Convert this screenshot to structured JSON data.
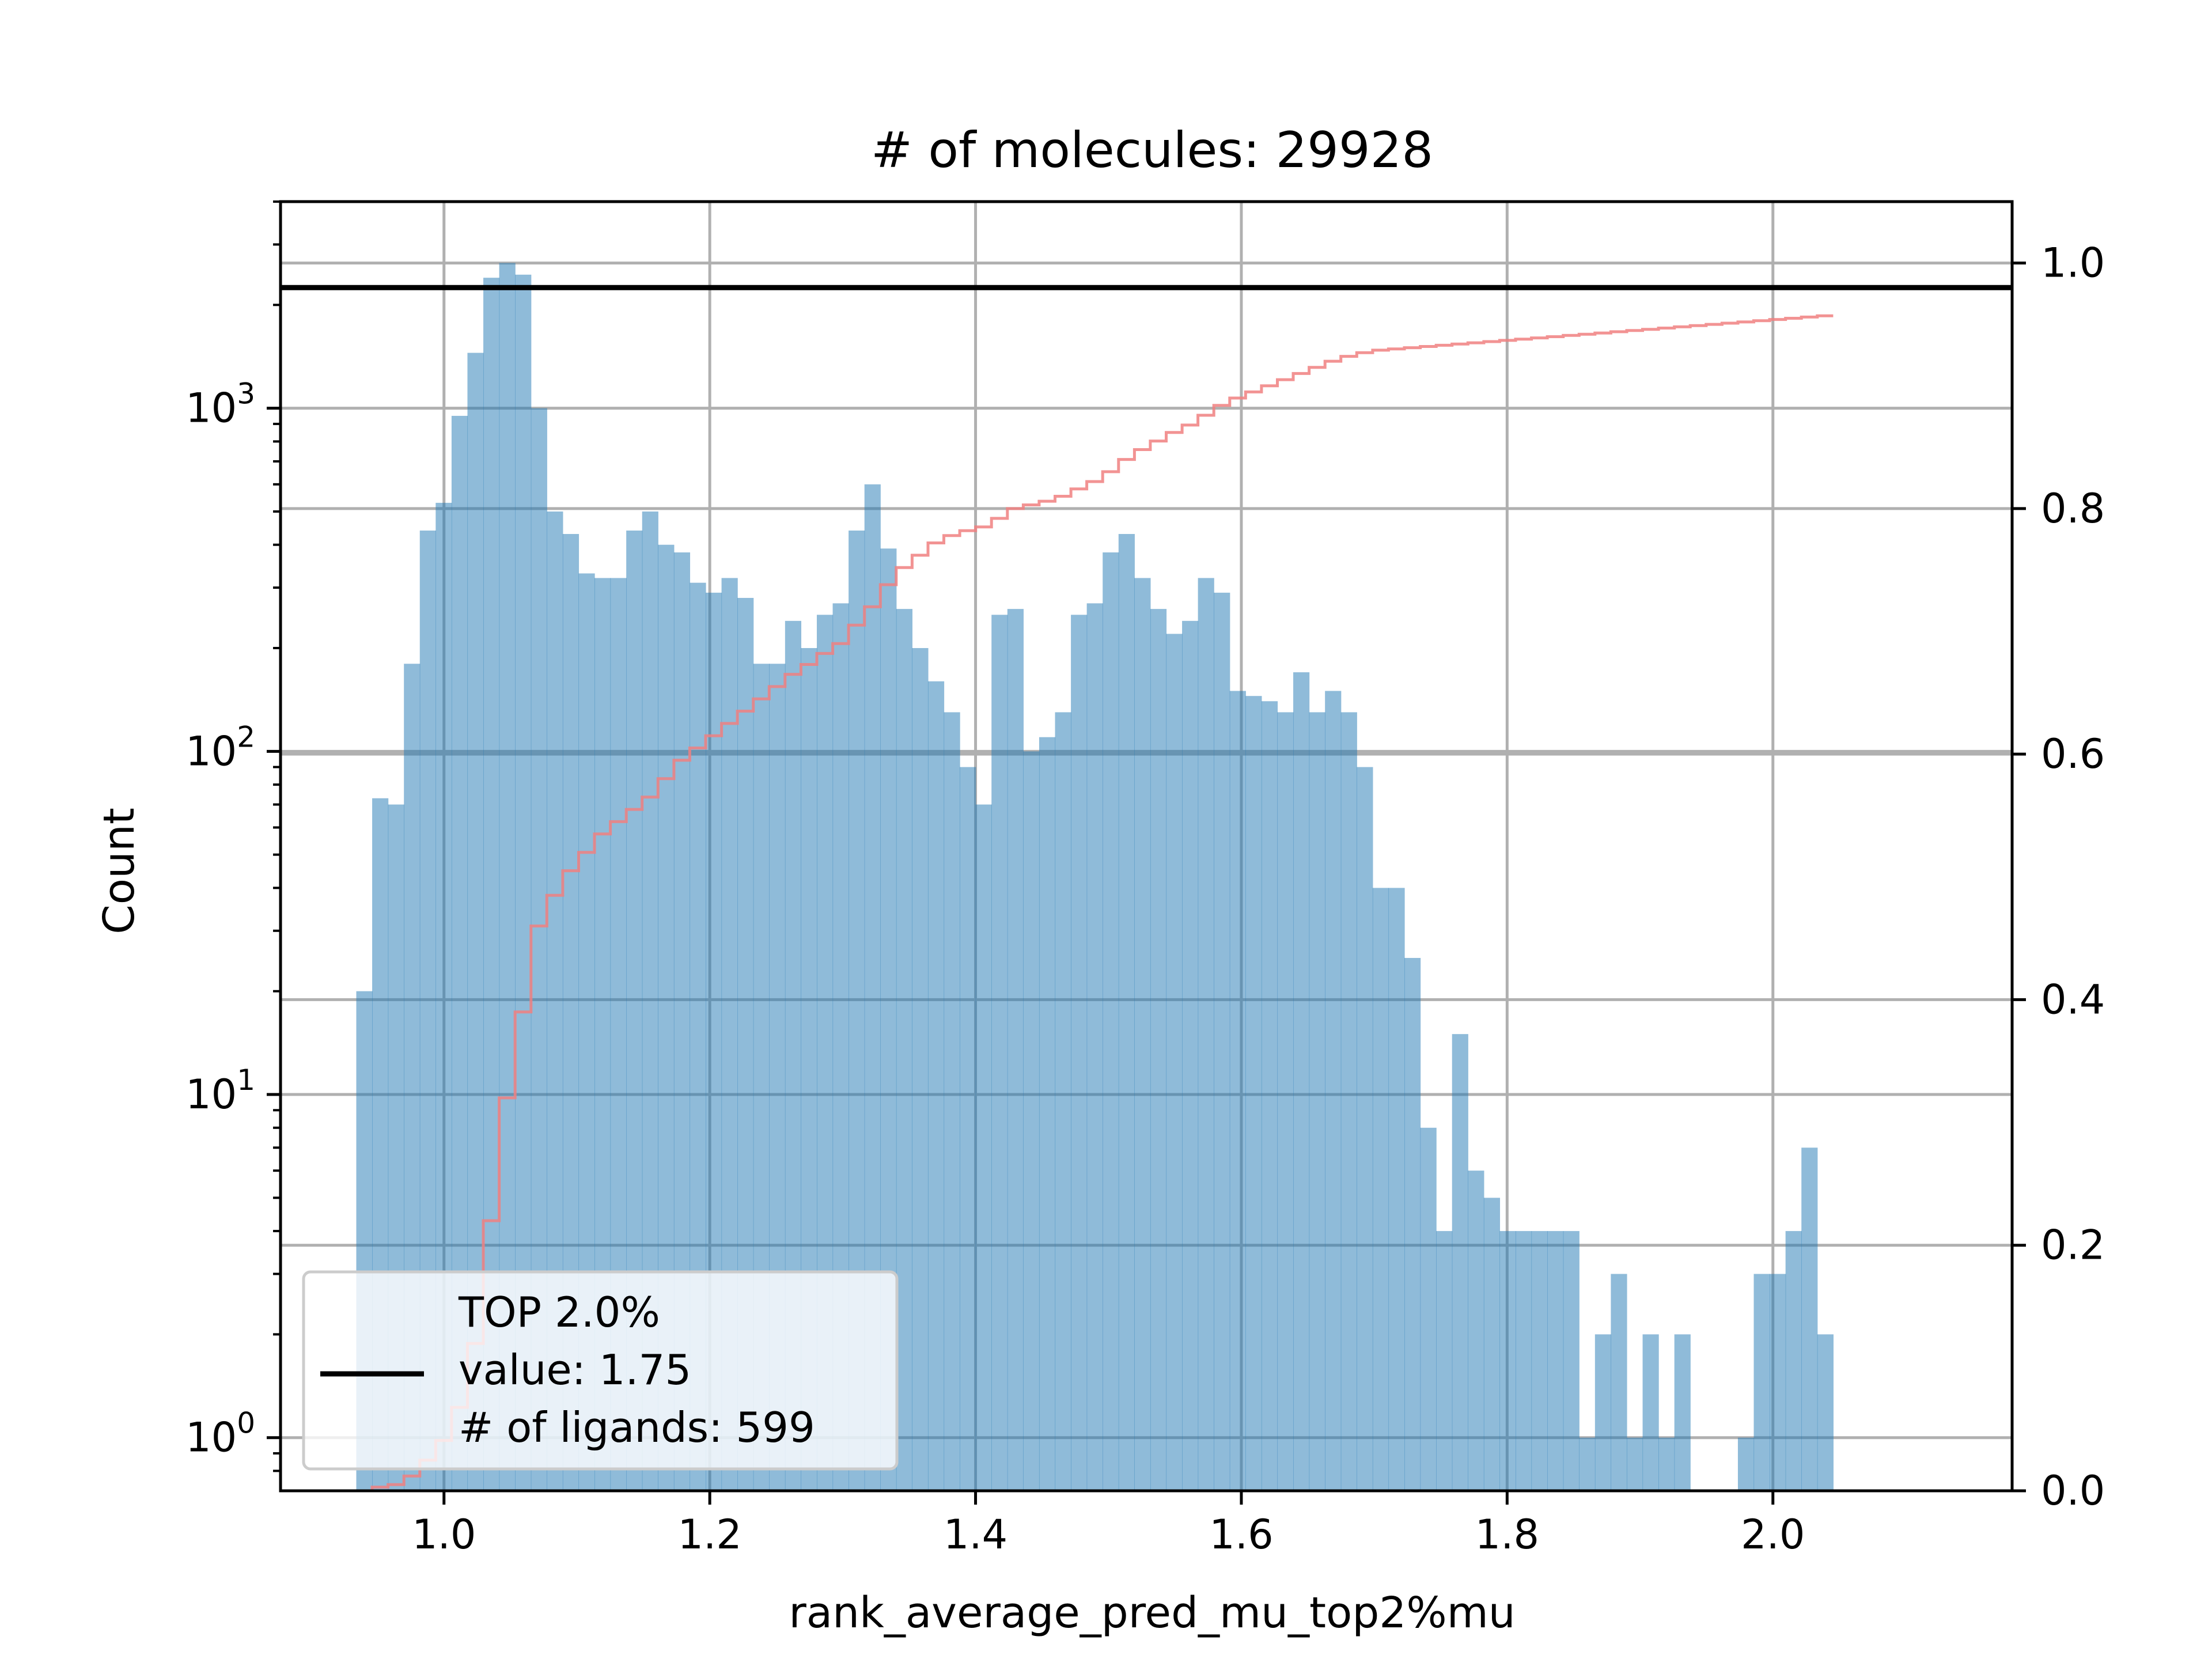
{
  "chart_data": {
    "type": "bar",
    "subtype": "histogram-log-y-with-cumulative-step",
    "title": "# of molecules: 29928",
    "xlabel": "rank_average_pred_mu_top2%mu",
    "ylabel": "Count",
    "yscale": "log",
    "xlim": [
      0.877,
      2.18
    ],
    "ylim": [
      0.7,
      4000
    ],
    "y2lim": [
      0.0,
      1.05
    ],
    "bin_start": 0.934,
    "bin_width": 0.01195,
    "x_ticks": [
      1.0,
      1.2,
      1.4,
      1.6,
      1.8,
      2.0
    ],
    "x_tick_labels": [
      "1.0",
      "1.2",
      "1.4",
      "1.6",
      "1.8",
      "2.0"
    ],
    "y_ticks": [
      1,
      10,
      100,
      1000
    ],
    "y_tick_bases": [
      "10",
      "10",
      "10",
      "10"
    ],
    "y_tick_exponents": [
      "0",
      "1",
      "2",
      "3"
    ],
    "y2_ticks": [
      0.0,
      0.2,
      0.4,
      0.6,
      0.8,
      1.0
    ],
    "y2_tick_labels": [
      "0.0",
      "0.2",
      "0.4",
      "0.6",
      "0.8",
      "1.0"
    ],
    "grid": true,
    "threshold_line": {
      "y2": 0.98,
      "color": "#000000"
    },
    "series": [
      {
        "name": "Count",
        "kind": "histogram",
        "color": "#1f77b4",
        "opacity": 0.5,
        "values": [
          20,
          73,
          70,
          180,
          440,
          530,
          950,
          1450,
          2400,
          2650,
          2450,
          1000,
          500,
          430,
          330,
          320,
          320,
          440,
          500,
          400,
          380,
          310,
          290,
          320,
          280,
          180,
          180,
          240,
          200,
          250,
          270,
          440,
          600,
          390,
          260,
          200,
          160,
          130,
          90,
          70,
          250,
          260,
          100,
          110,
          130,
          250,
          270,
          380,
          430,
          320,
          260,
          220,
          240,
          320,
          290,
          150,
          145,
          140,
          130,
          170,
          130,
          150,
          130,
          90,
          40,
          40,
          25,
          8,
          4,
          15,
          6,
          5,
          4,
          4,
          4,
          4,
          4,
          1,
          2,
          3,
          1,
          2,
          1,
          2,
          0,
          0,
          0,
          1,
          3,
          3,
          4,
          7,
          2
        ]
      },
      {
        "name": "Cumulative",
        "kind": "step",
        "color": "#f08080",
        "values": [
          0.0,
          0.003,
          0.005,
          0.012,
          0.025,
          0.041,
          0.068,
          0.12,
          0.22,
          0.32,
          0.39,
          0.46,
          0.485,
          0.505,
          0.52,
          0.535,
          0.545,
          0.555,
          0.565,
          0.58,
          0.595,
          0.605,
          0.615,
          0.625,
          0.635,
          0.645,
          0.655,
          0.665,
          0.673,
          0.682,
          0.69,
          0.705,
          0.72,
          0.738,
          0.752,
          0.762,
          0.772,
          0.778,
          0.782,
          0.785,
          0.792,
          0.8,
          0.803,
          0.806,
          0.81,
          0.816,
          0.822,
          0.83,
          0.84,
          0.848,
          0.855,
          0.862,
          0.868,
          0.876,
          0.884,
          0.89,
          0.895,
          0.9,
          0.905,
          0.91,
          0.915,
          0.92,
          0.924,
          0.927,
          0.929,
          0.93,
          0.931,
          0.932,
          0.933,
          0.934,
          0.935,
          0.936,
          0.937,
          0.938,
          0.939,
          0.94,
          0.941,
          0.942,
          0.943,
          0.944,
          0.945,
          0.946,
          0.947,
          0.948,
          0.949,
          0.95,
          0.951,
          0.952,
          0.953,
          0.954,
          0.955,
          0.956,
          0.957
        ]
      }
    ],
    "legend": {
      "position": "lower-left",
      "lines": [
        "TOP 2.0%",
        "value: 1.75",
        "# of ligands: 599"
      ],
      "line_color": "#000000"
    }
  }
}
